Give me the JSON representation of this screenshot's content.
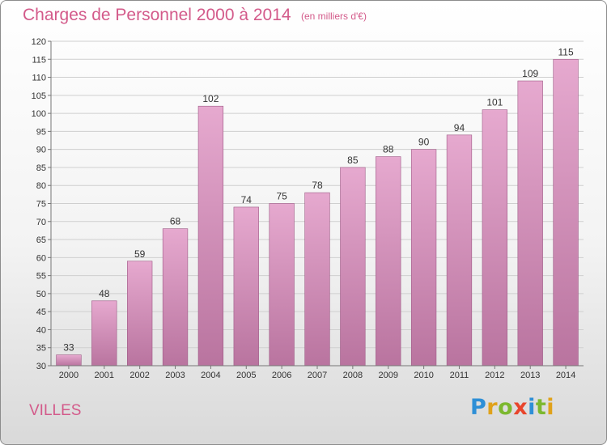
{
  "header": {
    "title": "Charges de Personnel 2000 à 2014",
    "subtitle": "(en milliers d'€)"
  },
  "footer": {
    "commune": "VILLES",
    "logo_text": "Proxiti",
    "logo_letters": [
      {
        "ch": "P",
        "color": "#2e8fd6"
      },
      {
        "ch": "r",
        "color": "#e0a21b"
      },
      {
        "ch": "o",
        "color": "#7cb82f"
      },
      {
        "ch": "x",
        "color": "#e8452c"
      },
      {
        "ch": "i",
        "color": "#2e8fd6"
      },
      {
        "ch": "t",
        "color": "#7cb82f"
      },
      {
        "ch": "i",
        "color": "#e0a21b"
      }
    ]
  },
  "colors": {
    "bar_top": "#e6a9cf",
    "bar_bottom": "#b9749f",
    "bar_edge": "#9e5a86",
    "grid": "#cfcfcf",
    "accent": "#d35a8a"
  },
  "chart_data": {
    "type": "bar",
    "title": "Charges de Personnel 2000 à 2014",
    "subtitle": "(en milliers d'€)",
    "categories": [
      "2000",
      "2001",
      "2002",
      "2003",
      "2004",
      "2005",
      "2006",
      "2007",
      "2008",
      "2009",
      "2010",
      "2011",
      "2012",
      "2013",
      "2014"
    ],
    "values": [
      33,
      48,
      59,
      68,
      102,
      74,
      75,
      78,
      85,
      88,
      90,
      94,
      101,
      109,
      115
    ],
    "xlabel": "",
    "ylabel": "",
    "ylim": [
      30,
      120
    ],
    "yticks": [
      30,
      35,
      40,
      45,
      50,
      55,
      60,
      65,
      70,
      75,
      80,
      85,
      90,
      95,
      100,
      105,
      110,
      115,
      120
    ],
    "grid": true,
    "data_labels": true
  }
}
